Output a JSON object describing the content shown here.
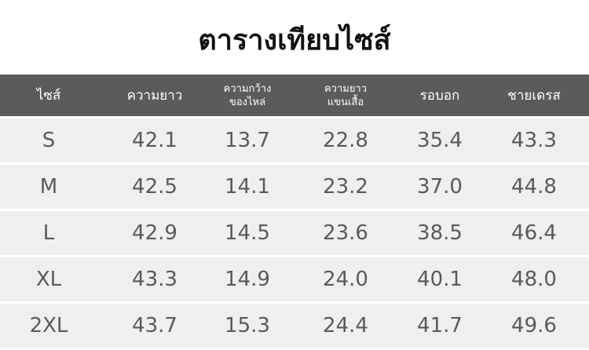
{
  "title": "ตารางเทียบไซส์",
  "columns": [
    {
      "label": "ไซส์",
      "small": false
    },
    {
      "label": "ความยาว",
      "small": false
    },
    {
      "label": "ความกว้าง\nของไหล่",
      "small": true
    },
    {
      "label": "ความยาว\nแขนเสื้อ",
      "small": true
    },
    {
      "label": "รอบอก",
      "small": false
    },
    {
      "label": "ชายเดรส",
      "small": false
    }
  ],
  "rows": [
    [
      "S",
      "42.1",
      "13.7",
      "22.8",
      "35.4",
      "43.3"
    ],
    [
      "M",
      "42.5",
      "14.1",
      "23.2",
      "37.0",
      "44.8"
    ],
    [
      "L",
      "42.9",
      "14.5",
      "23.6",
      "38.5",
      "46.4"
    ],
    [
      "XL",
      "43.3",
      "14.9",
      "24.0",
      "40.1",
      "48.0"
    ],
    [
      "2XL",
      "43.7",
      "15.3",
      "24.4",
      "41.7",
      "49.6"
    ]
  ],
  "colors": {
    "header_bg": "#5b5b5b",
    "row_bg": "#efefef",
    "text": "#5a5a5a"
  }
}
